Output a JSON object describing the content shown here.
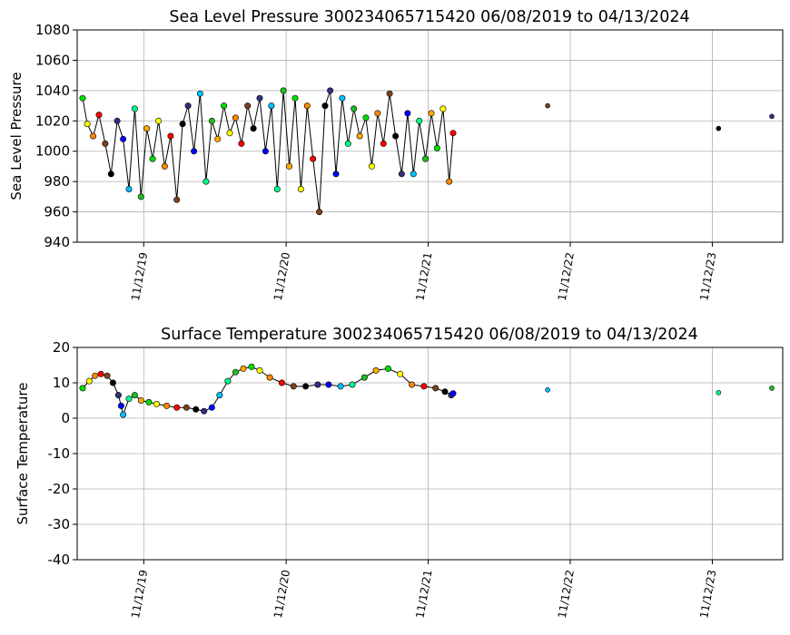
{
  "chart_data": [
    {
      "type": "scatter",
      "title": "Sea Level Pressure 300234065715420  06/08/2019 to 04/13/2024",
      "xlabel": "",
      "ylabel": "Sea Level Pressure",
      "ylim": [
        940,
        1080
      ],
      "yticks": [
        940,
        960,
        980,
        1000,
        1020,
        1040,
        1060,
        1080
      ],
      "xlim": [
        "2019-05-25",
        "2024-05-11"
      ],
      "xticks": [
        "11/12/19",
        "11/12/20",
        "11/12/21",
        "11/12/22",
        "11/12/23"
      ],
      "grid": true,
      "points": [
        {
          "x": "2019-06-08",
          "y": 1035
        },
        {
          "x": "2019-06-20",
          "y": 1018
        },
        {
          "x": "2019-07-05",
          "y": 1010
        },
        {
          "x": "2019-07-20",
          "y": 1024
        },
        {
          "x": "2019-08-05",
          "y": 1005
        },
        {
          "x": "2019-08-20",
          "y": 985
        },
        {
          "x": "2019-09-05",
          "y": 1020
        },
        {
          "x": "2019-09-20",
          "y": 1008
        },
        {
          "x": "2019-10-05",
          "y": 975
        },
        {
          "x": "2019-10-20",
          "y": 1028
        },
        {
          "x": "2019-11-05",
          "y": 970
        },
        {
          "x": "2019-11-20",
          "y": 1015
        },
        {
          "x": "2019-12-05",
          "y": 995
        },
        {
          "x": "2019-12-20",
          "y": 1020
        },
        {
          "x": "2020-01-05",
          "y": 990
        },
        {
          "x": "2020-01-20",
          "y": 1010
        },
        {
          "x": "2020-02-05",
          "y": 968
        },
        {
          "x": "2020-02-20",
          "y": 1018
        },
        {
          "x": "2020-03-05",
          "y": 1030
        },
        {
          "x": "2020-03-20",
          "y": 1000
        },
        {
          "x": "2020-04-05",
          "y": 1038
        },
        {
          "x": "2020-04-20",
          "y": 980
        },
        {
          "x": "2020-05-05",
          "y": 1020
        },
        {
          "x": "2020-05-20",
          "y": 1008
        },
        {
          "x": "2020-06-05",
          "y": 1030
        },
        {
          "x": "2020-06-20",
          "y": 1012
        },
        {
          "x": "2020-07-05",
          "y": 1022
        },
        {
          "x": "2020-07-20",
          "y": 1005
        },
        {
          "x": "2020-08-05",
          "y": 1030
        },
        {
          "x": "2020-08-20",
          "y": 1015
        },
        {
          "x": "2020-09-05",
          "y": 1035
        },
        {
          "x": "2020-09-20",
          "y": 1000
        },
        {
          "x": "2020-10-05",
          "y": 1030
        },
        {
          "x": "2020-10-20",
          "y": 975
        },
        {
          "x": "2020-11-05",
          "y": 1040
        },
        {
          "x": "2020-11-20",
          "y": 990
        },
        {
          "x": "2020-12-05",
          "y": 1035
        },
        {
          "x": "2020-12-20",
          "y": 975
        },
        {
          "x": "2021-01-05",
          "y": 1030
        },
        {
          "x": "2021-01-20",
          "y": 995
        },
        {
          "x": "2021-02-05",
          "y": 960
        },
        {
          "x": "2021-02-20",
          "y": 1030
        },
        {
          "x": "2021-03-05",
          "y": 1040
        },
        {
          "x": "2021-03-20",
          "y": 985
        },
        {
          "x": "2021-04-05",
          "y": 1035
        },
        {
          "x": "2021-04-20",
          "y": 1005
        },
        {
          "x": "2021-05-05",
          "y": 1028
        },
        {
          "x": "2021-05-20",
          "y": 1010
        },
        {
          "x": "2021-06-05",
          "y": 1022
        },
        {
          "x": "2021-06-20",
          "y": 990
        },
        {
          "x": "2021-07-05",
          "y": 1025
        },
        {
          "x": "2021-07-20",
          "y": 1005
        },
        {
          "x": "2021-08-05",
          "y": 1038
        },
        {
          "x": "2021-08-20",
          "y": 1010
        },
        {
          "x": "2021-09-05",
          "y": 985
        },
        {
          "x": "2021-09-20",
          "y": 1025
        },
        {
          "x": "2021-10-05",
          "y": 985
        },
        {
          "x": "2021-10-20",
          "y": 1020
        },
        {
          "x": "2021-11-05",
          "y": 995
        },
        {
          "x": "2021-11-20",
          "y": 1025
        },
        {
          "x": "2021-12-05",
          "y": 1002
        },
        {
          "x": "2021-12-20",
          "y": 1028
        },
        {
          "x": "2022-01-05",
          "y": 980
        },
        {
          "x": "2022-01-15",
          "y": 1012
        },
        {
          "x": "2022-09-15",
          "y": 1030
        },
        {
          "x": "2023-11-28",
          "y": 1015
        },
        {
          "x": "2024-04-13",
          "y": 1023
        }
      ]
    },
    {
      "type": "scatter",
      "title": "Surface Temperature 300234065715420  06/08/2019 to 04/13/2024",
      "xlabel": "",
      "ylabel": "Surface Temperature",
      "ylim": [
        -40,
        20
      ],
      "yticks": [
        -40,
        -30,
        -20,
        -10,
        0,
        10,
        20
      ],
      "xlim": [
        "2019-05-25",
        "2024-05-11"
      ],
      "xticks": [
        "11/12/19",
        "11/12/20",
        "11/12/21",
        "11/12/22",
        "11/12/23"
      ],
      "grid": true,
      "points": [
        {
          "x": "2019-06-08",
          "y": 8.5
        },
        {
          "x": "2019-06-25",
          "y": 10.5
        },
        {
          "x": "2019-07-10",
          "y": 12.0
        },
        {
          "x": "2019-07-25",
          "y": 12.5
        },
        {
          "x": "2019-08-10",
          "y": 12.0
        },
        {
          "x": "2019-08-25",
          "y": 10.0
        },
        {
          "x": "2019-09-08",
          "y": 6.5
        },
        {
          "x": "2019-09-15",
          "y": 3.5
        },
        {
          "x": "2019-09-20",
          "y": 1.0
        },
        {
          "x": "2019-10-05",
          "y": 5.5
        },
        {
          "x": "2019-10-20",
          "y": 6.5
        },
        {
          "x": "2019-11-05",
          "y": 5.0
        },
        {
          "x": "2019-11-25",
          "y": 4.5
        },
        {
          "x": "2019-12-15",
          "y": 4.0
        },
        {
          "x": "2020-01-10",
          "y": 3.5
        },
        {
          "x": "2020-02-05",
          "y": 3.0
        },
        {
          "x": "2020-03-01",
          "y": 3.0
        },
        {
          "x": "2020-03-25",
          "y": 2.5
        },
        {
          "x": "2020-04-15",
          "y": 2.0
        },
        {
          "x": "2020-05-05",
          "y": 3.0
        },
        {
          "x": "2020-05-25",
          "y": 6.5
        },
        {
          "x": "2020-06-15",
          "y": 10.5
        },
        {
          "x": "2020-07-05",
          "y": 13.0
        },
        {
          "x": "2020-07-25",
          "y": 14.0
        },
        {
          "x": "2020-08-15",
          "y": 14.5
        },
        {
          "x": "2020-09-05",
          "y": 13.5
        },
        {
          "x": "2020-10-01",
          "y": 11.5
        },
        {
          "x": "2020-11-01",
          "y": 10.0
        },
        {
          "x": "2020-12-01",
          "y": 9.0
        },
        {
          "x": "2021-01-01",
          "y": 9.0
        },
        {
          "x": "2021-02-01",
          "y": 9.5
        },
        {
          "x": "2021-03-01",
          "y": 9.5
        },
        {
          "x": "2021-04-01",
          "y": 9.0
        },
        {
          "x": "2021-05-01",
          "y": 9.5
        },
        {
          "x": "2021-06-01",
          "y": 11.5
        },
        {
          "x": "2021-07-01",
          "y": 13.5
        },
        {
          "x": "2021-08-01",
          "y": 14.0
        },
        {
          "x": "2021-09-01",
          "y": 12.5
        },
        {
          "x": "2021-10-01",
          "y": 9.5
        },
        {
          "x": "2021-11-01",
          "y": 9.0
        },
        {
          "x": "2021-12-01",
          "y": 8.5
        },
        {
          "x": "2021-12-25",
          "y": 7.5
        },
        {
          "x": "2022-01-10",
          "y": 6.5
        },
        {
          "x": "2022-01-15",
          "y": 7.0
        },
        {
          "x": "2022-09-15",
          "y": 8.0
        },
        {
          "x": "2023-11-28",
          "y": 7.2
        },
        {
          "x": "2024-04-13",
          "y": 8.5
        }
      ]
    }
  ]
}
